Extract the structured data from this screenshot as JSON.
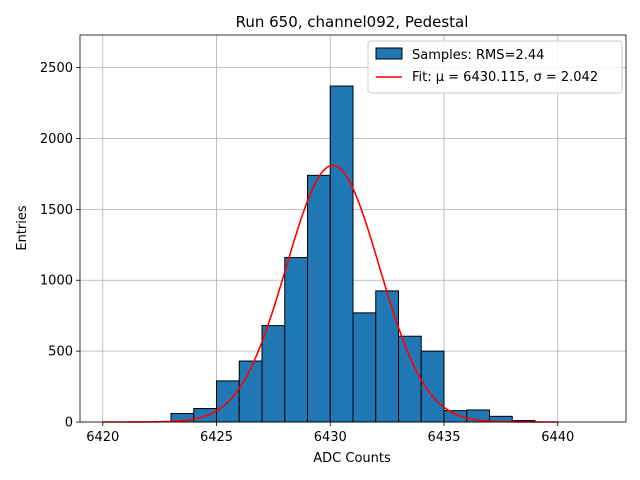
{
  "chart_data": {
    "type": "bar",
    "title": "Run 650, channel092, Pedestal",
    "xlabel": "ADC Counts",
    "ylabel": "Entries",
    "xlim": [
      6419,
      6443
    ],
    "ylim": [
      0,
      2730
    ],
    "xticks": [
      6420,
      6425,
      6430,
      6435,
      6440
    ],
    "yticks": [
      0,
      500,
      1000,
      1500,
      2000,
      2500
    ],
    "grid": true,
    "legend_position": "top-right",
    "bins": {
      "edges": [
        6423,
        6424,
        6425,
        6426,
        6427,
        6428,
        6429,
        6430,
        6431,
        6432,
        6433,
        6434,
        6435,
        6436,
        6437,
        6438,
        6439
      ],
      "counts": [
        60,
        95,
        290,
        430,
        680,
        1160,
        1740,
        2370,
        770,
        925,
        605,
        500,
        80,
        85,
        40,
        10
      ],
      "color": "#1f77b4",
      "edgecolor": "#000000"
    },
    "series": [
      {
        "name": "Samples: RMS=2.44",
        "kind": "histogram",
        "color": "#1f77b4"
      },
      {
        "name": "Fit: μ = 6430.115, σ = 2.042",
        "kind": "line",
        "color": "#ff0000"
      }
    ],
    "fit": {
      "mu": 6430.115,
      "sigma": 2.042,
      "amplitude": 1810,
      "x_range": [
        6420,
        6440
      ]
    }
  }
}
